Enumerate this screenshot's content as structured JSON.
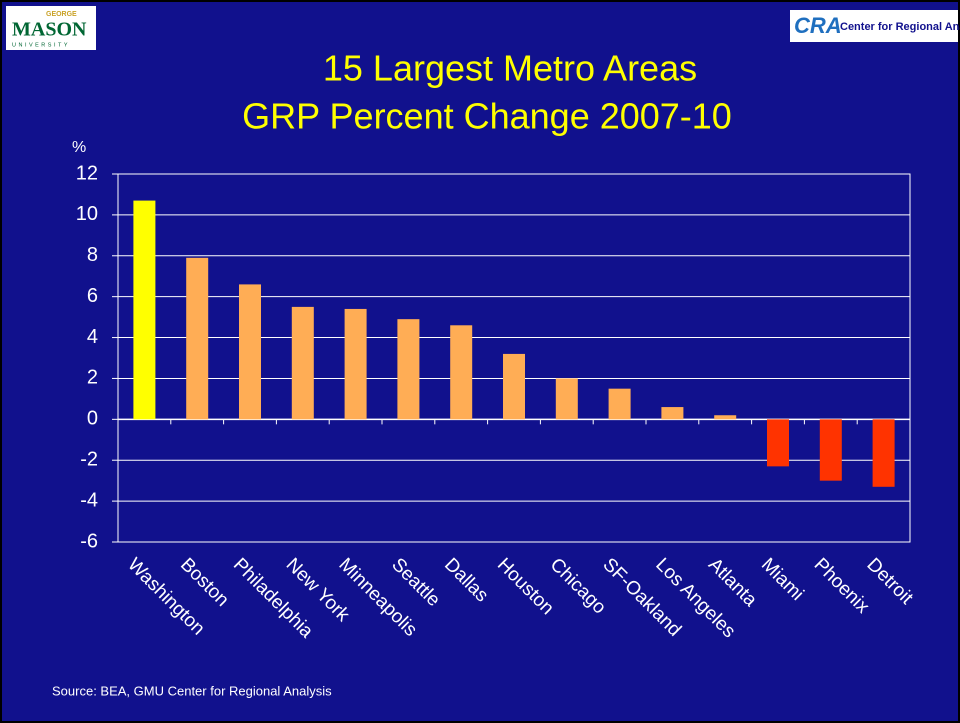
{
  "logos": {
    "left": {
      "top": "GEORGE",
      "main": "MASON",
      "bottom": "UNIVERSITY"
    },
    "right": {
      "mark": "CRA",
      "text": "Center for Regional Analys"
    }
  },
  "chart_data": {
    "type": "bar",
    "title": [
      "15 Largest Metro Areas",
      "GRP Percent Change 2007-10"
    ],
    "y_label": "%",
    "categories": [
      "Washington",
      "Boston",
      "Philadelphia",
      "New York",
      "Minneapolis",
      "Seattle",
      "Dallas",
      "Houston",
      "Chicago",
      "SF-Oakland",
      "Los Angeles",
      "Atlanta",
      "Miami",
      "Phoenix",
      "Detroit"
    ],
    "values": [
      10.7,
      7.9,
      6.6,
      5.5,
      5.4,
      4.9,
      4.6,
      3.2,
      2.0,
      1.5,
      0.6,
      0.2,
      -2.3,
      -3.0,
      -3.3
    ],
    "colors": [
      "#ffff00",
      "#ffad55",
      "#ffad55",
      "#ffad55",
      "#ffad55",
      "#ffad55",
      "#ffad55",
      "#ffad55",
      "#ffad55",
      "#ffad55",
      "#ffad55",
      "#ffad55",
      "#ff3300",
      "#ff3300",
      "#ff3300"
    ],
    "ylim": [
      -6,
      12
    ],
    "yticks": [
      -6,
      -4,
      -2,
      0,
      2,
      4,
      6,
      8,
      10,
      12
    ],
    "grid": true,
    "source": "Source: BEA,  GMU Center for Regional Analysis"
  }
}
